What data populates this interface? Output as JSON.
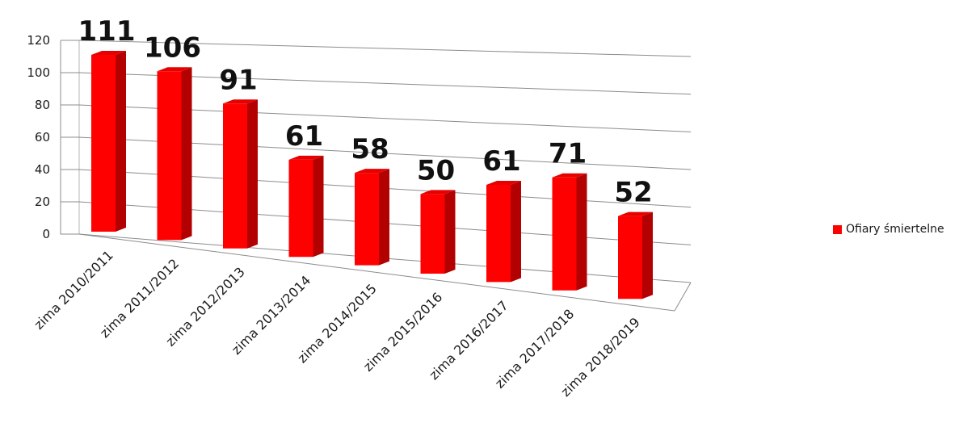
{
  "chart_data": {
    "type": "bar",
    "categories": [
      "zima 2010/2011",
      "zima 2011/2012",
      "zima 2012/2013",
      "zima 2013/2014",
      "zima 2014/2015",
      "zima 2015/2016",
      "zima 2016/2017",
      "zima 2017/2018",
      "zima 2018/2019"
    ],
    "series": [
      {
        "name": "Ofiary śmiertelne",
        "values": [
          111,
          106,
          91,
          61,
          58,
          50,
          61,
          71,
          52
        ],
        "color": "#ff0000"
      }
    ],
    "data_labels": [
      "111",
      "106",
      "91",
      "61",
      "58",
      "50",
      "61",
      "71",
      "52"
    ],
    "ylim": [
      0,
      120
    ],
    "yticks": [
      "0",
      "20",
      "40",
      "60",
      "80",
      "100",
      "120"
    ],
    "grid": true,
    "legend_position": "right",
    "style": "3d-column"
  },
  "legend": {
    "label": "Ofiary śmiertelne",
    "color": "#ff0000"
  }
}
